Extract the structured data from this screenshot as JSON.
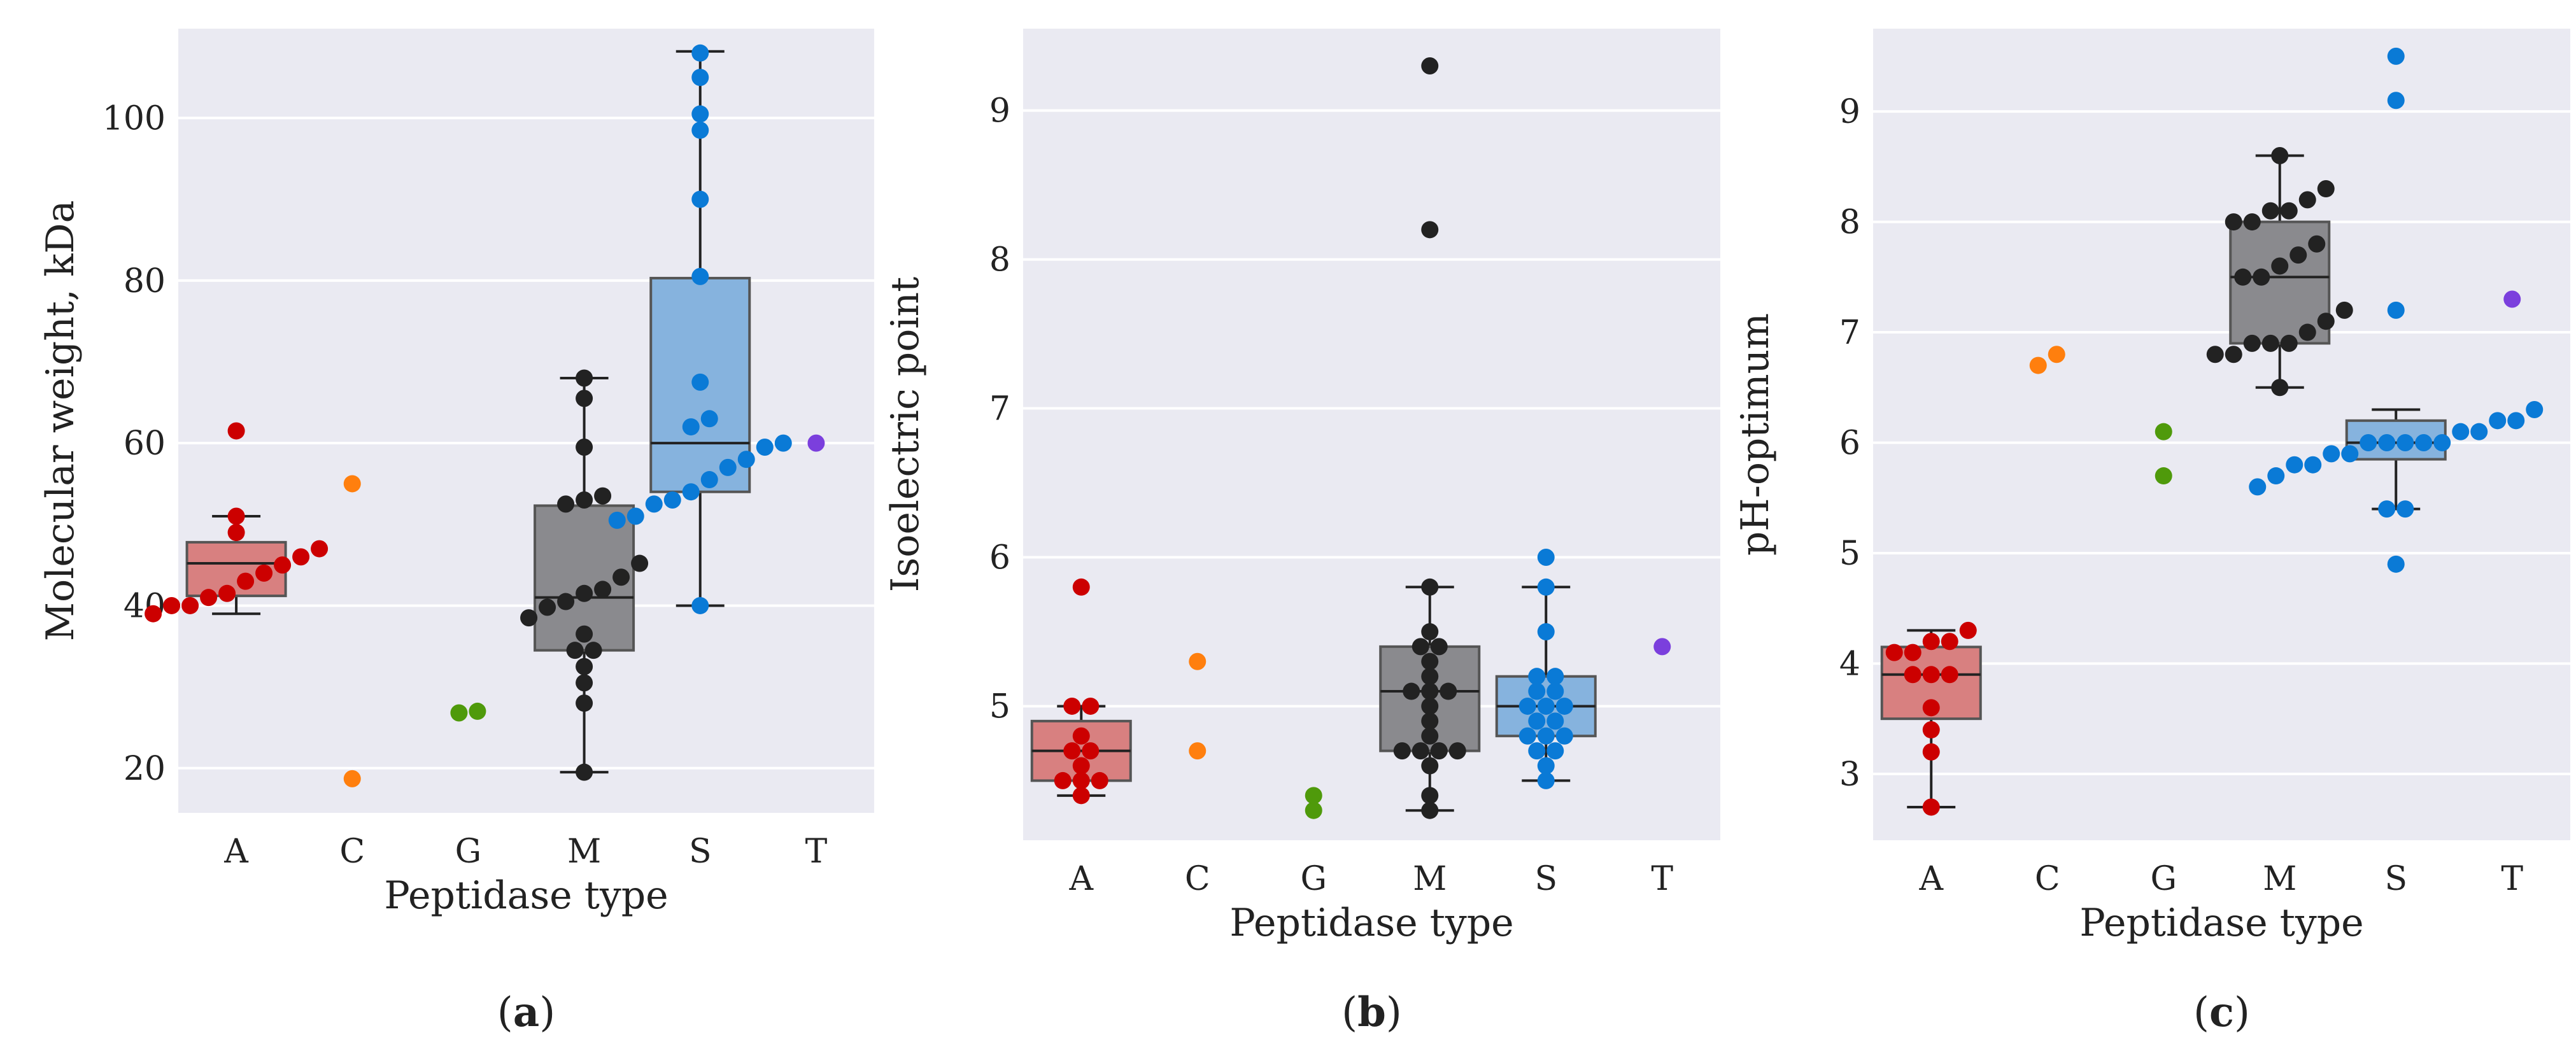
{
  "colors": {
    "A": "#cc0000",
    "C": "#ff7f0e",
    "G": "#4f9a0b",
    "M": "#222222",
    "S": "#0a7ad6",
    "T": "#7b3fdd",
    "box_A": "#d88080",
    "box_M": "#8a8a8e",
    "box_S": "#86b3de",
    "background": "#eaeaf2",
    "grid": "#ffffff"
  },
  "chart_data": [
    {
      "type": "box-swarm",
      "panel_label": "a",
      "title": "",
      "xlabel": "Peptidase type",
      "ylabel": "Molecular weight, kDa",
      "categories": [
        "A",
        "C",
        "G",
        "M",
        "S",
        "T"
      ],
      "ylim": [
        14.5,
        111
      ],
      "yticks": [
        20,
        40,
        60,
        80,
        100
      ],
      "grid": true,
      "boxes": {
        "A": {
          "whislo": 39,
          "q1": 41.2,
          "med": 45.2,
          "q3": 47.8,
          "whishi": 51
        },
        "M": {
          "whislo": 19.5,
          "q1": 34.5,
          "med": 41,
          "q3": 52.3,
          "whishi": 68
        },
        "S": {
          "whislo": 40,
          "q1": 54,
          "med": 60,
          "q3": 80.3,
          "whishi": 108.2
        }
      },
      "points": {
        "A": [
          39,
          40,
          40,
          41,
          41.5,
          43,
          44,
          45,
          46,
          47,
          49,
          51,
          61.5
        ],
        "C": [
          18.7,
          55
        ],
        "G": [
          27,
          26.8
        ],
        "M": [
          19.5,
          28,
          30.5,
          32.5,
          34.5,
          34.5,
          36.5,
          38.5,
          39.8,
          40.5,
          41.5,
          42,
          43.5,
          45.2,
          52.5,
          53,
          53.5,
          59.5,
          65.5,
          68
        ],
        "S": [
          40,
          50.5,
          51,
          52.5,
          53,
          54,
          55.5,
          57,
          58,
          59.5,
          60,
          62,
          63,
          67.5,
          80.5,
          90,
          98.5,
          100.5,
          105,
          108
        ],
        "T": [
          60
        ]
      }
    },
    {
      "type": "box-swarm",
      "panel_label": "b",
      "title": "",
      "xlabel": "Peptidase type",
      "ylabel": "Isoelectric point",
      "categories": [
        "A",
        "C",
        "G",
        "M",
        "S",
        "T"
      ],
      "ylim": [
        4.1,
        9.55
      ],
      "yticks": [
        5,
        6,
        7,
        8,
        9
      ],
      "grid": true,
      "boxes": {
        "A": {
          "whislo": 4.4,
          "q1": 4.5,
          "med": 4.7,
          "q3": 4.9,
          "whishi": 5.0
        },
        "M": {
          "whislo": 4.3,
          "q1": 4.7,
          "med": 5.1,
          "q3": 5.4,
          "whishi": 5.8
        },
        "S": {
          "whislo": 4.5,
          "q1": 4.8,
          "med": 5.0,
          "q3": 5.2,
          "whishi": 5.8
        }
      },
      "points": {
        "A": [
          4.4,
          4.5,
          4.5,
          4.5,
          4.6,
          4.7,
          4.7,
          4.8,
          5.0,
          5.0,
          5.8
        ],
        "C": [
          4.7,
          5.3
        ],
        "G": [
          4.4,
          4.3
        ],
        "M": [
          4.3,
          4.4,
          4.6,
          4.7,
          4.7,
          4.7,
          4.7,
          4.8,
          4.9,
          5.0,
          5.1,
          5.1,
          5.1,
          5.2,
          5.3,
          5.4,
          5.4,
          5.5,
          5.8,
          8.2,
          9.3
        ],
        "S": [
          4.5,
          4.6,
          4.7,
          4.7,
          4.8,
          4.8,
          4.8,
          4.9,
          4.9,
          5.0,
          5.0,
          5.0,
          5.1,
          5.1,
          5.2,
          5.2,
          5.5,
          5.8,
          6.0
        ],
        "T": [
          5.4
        ]
      }
    },
    {
      "type": "box-swarm",
      "panel_label": "c",
      "title": "",
      "xlabel": "Peptidase type",
      "ylabel": "pH-optimum",
      "categories": [
        "A",
        "C",
        "G",
        "M",
        "S",
        "T"
      ],
      "ylim": [
        2.4,
        9.75
      ],
      "yticks": [
        3,
        4,
        5,
        6,
        7,
        8,
        9
      ],
      "grid": true,
      "boxes": {
        "A": {
          "whislo": 2.7,
          "q1": 3.5,
          "med": 3.9,
          "q3": 4.15,
          "whishi": 4.3
        },
        "M": {
          "whislo": 6.5,
          "q1": 6.9,
          "med": 7.5,
          "q3": 8.0,
          "whishi": 8.6
        },
        "S": {
          "whislo": 5.4,
          "q1": 5.85,
          "med": 6.0,
          "q3": 6.2,
          "whishi": 6.3
        }
      },
      "points": {
        "A": [
          2.7,
          3.2,
          3.4,
          3.6,
          3.9,
          3.9,
          3.9,
          4.1,
          4.1,
          4.2,
          4.2,
          4.3
        ],
        "C": [
          6.8,
          6.7
        ],
        "G": [
          6.1,
          5.7
        ],
        "M": [
          6.5,
          6.8,
          6.8,
          6.9,
          6.9,
          6.9,
          7.0,
          7.1,
          7.2,
          7.5,
          7.5,
          7.6,
          7.7,
          7.8,
          8.0,
          8.0,
          8.1,
          8.1,
          8.2,
          8.3,
          8.6
        ],
        "S": [
          4.9,
          5.4,
          5.4,
          5.6,
          5.7,
          5.8,
          5.8,
          5.9,
          5.9,
          6.0,
          6.0,
          6.0,
          6.0,
          6.0,
          6.1,
          6.1,
          6.2,
          6.2,
          6.3,
          7.2,
          9.1,
          9.5
        ],
        "T": [
          7.3
        ]
      }
    }
  ]
}
